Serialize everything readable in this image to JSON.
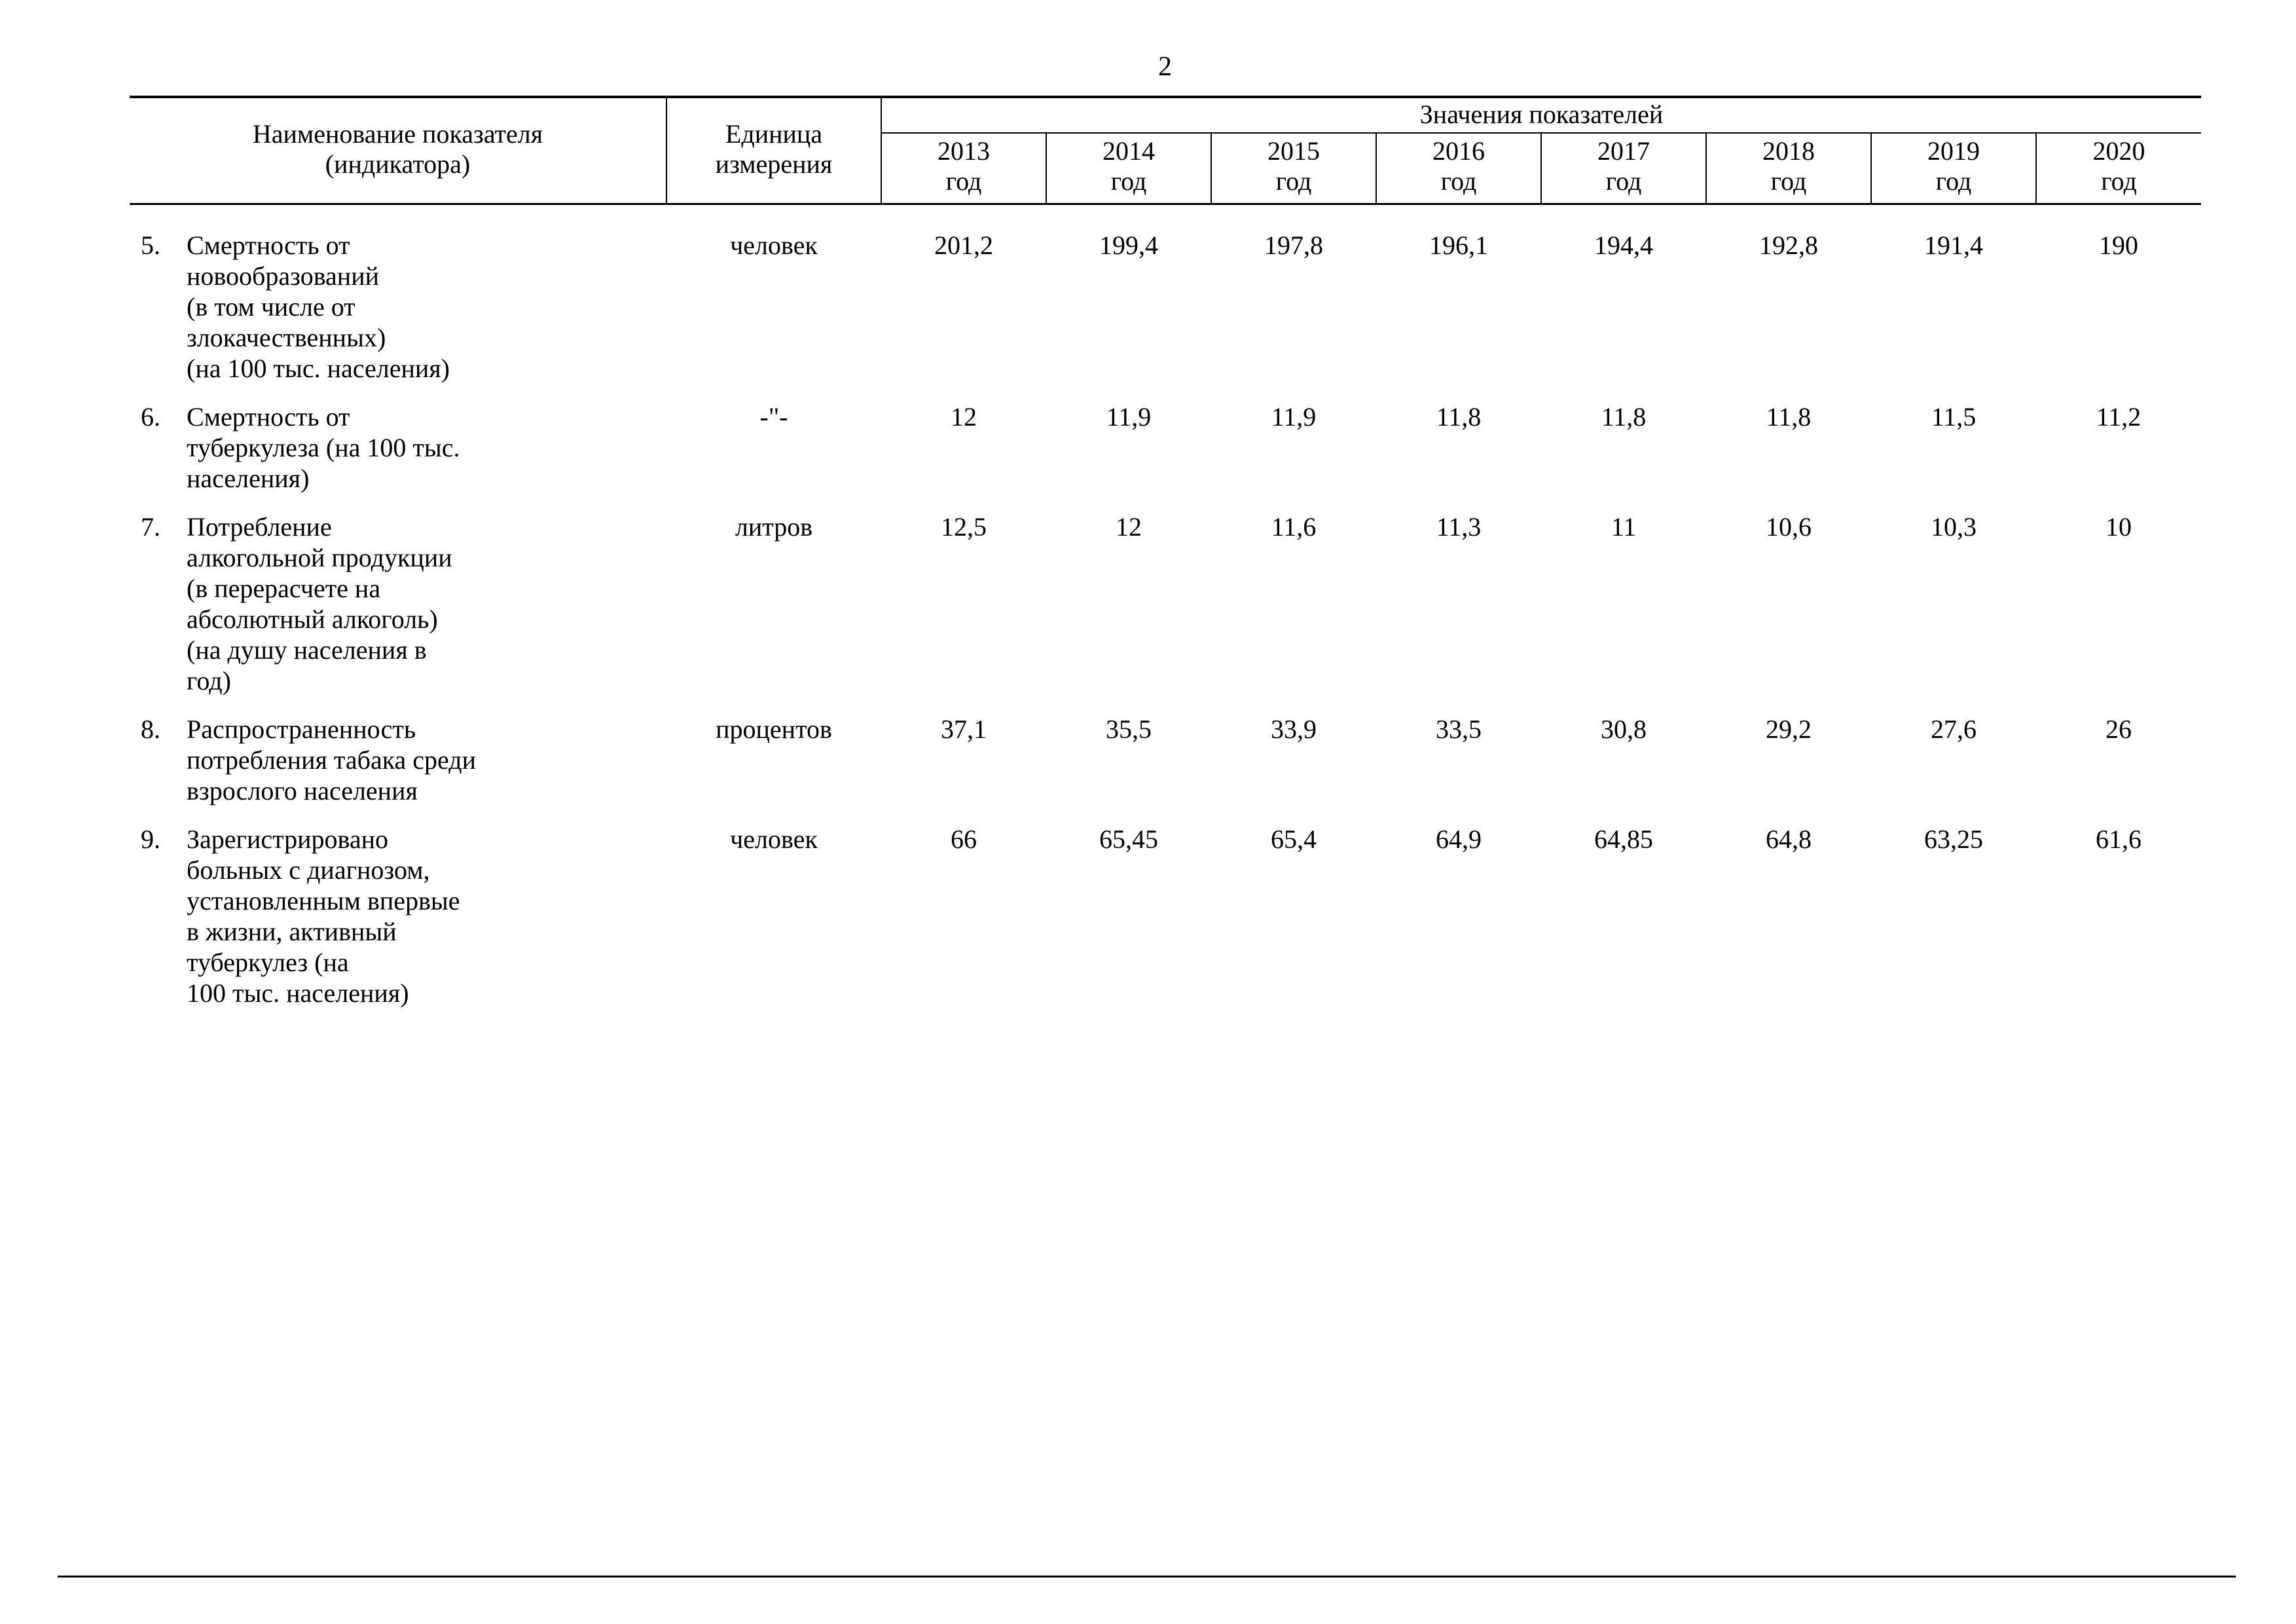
{
  "page": {
    "number": "2"
  },
  "table": {
    "header": {
      "name": "Наименование показателя\n(индикатора)",
      "unit": "Единица\nизмерения",
      "values_group": "Значения показателей",
      "years": [
        "2013\nгод",
        "2014\nгод",
        "2015\nгод",
        "2016\nгод",
        "2017\nгод",
        "2018\nгод",
        "2019\nгод",
        "2020\nгод"
      ]
    },
    "rows": [
      {
        "num": "5.",
        "name": "Смертность от\nновообразований\n(в том числе от\nзлокачественных)\n(на 100 тыс. населения)",
        "unit": "человек",
        "values": [
          "201,2",
          "199,4",
          "197,8",
          "196,1",
          "194,4",
          "192,8",
          "191,4",
          "190"
        ]
      },
      {
        "num": "6.",
        "name": "Смертность от\nтуберкулеза (на 100 тыс.\nнаселения)",
        "unit": "-\"-",
        "values": [
          "12",
          "11,9",
          "11,9",
          "11,8",
          "11,8",
          "11,8",
          "11,5",
          "11,2"
        ]
      },
      {
        "num": "7.",
        "name": "Потребление\nалкогольной продукции\n(в перерасчете на\nабсолютный алкоголь)\n(на душу населения в\nгод)",
        "unit": "литров",
        "values": [
          "12,5",
          "12",
          "11,6",
          "11,3",
          "11",
          "10,6",
          "10,3",
          "10"
        ]
      },
      {
        "num": "8.",
        "name": "Распространенность\nпотребления табака среди\nвзрослого населения",
        "unit": "процентов",
        "values": [
          "37,1",
          "35,5",
          "33,9",
          "33,5",
          "30,8",
          "29,2",
          "27,6",
          "26"
        ]
      },
      {
        "num": "9.",
        "name": "Зарегистрировано\nбольных с диагнозом,\nустановленным впервые\nв жизни, активный\nтуберкулез (на\n100 тыс. населения)",
        "unit": "человек",
        "values": [
          "66",
          "65,45",
          "65,4",
          "64,9",
          "64,85",
          "64,8",
          "63,25",
          "61,6"
        ]
      }
    ]
  }
}
